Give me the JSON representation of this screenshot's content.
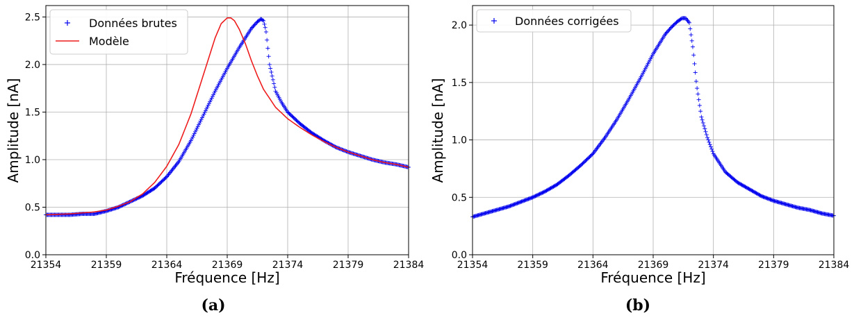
{
  "colors": {
    "raw": "#0000ee",
    "model": "#ee1c1c",
    "grid": "#b0b0b0"
  },
  "chart_data": [
    {
      "type": "scatter",
      "caption": "(a)",
      "xlabel": "Fréquence [Hz]",
      "ylabel": "Amplitude [nA]",
      "xlim": [
        21354,
        21384
      ],
      "ylim": [
        0.0,
        2.62
      ],
      "xticks": [
        "21354",
        "21359",
        "21364",
        "21369",
        "21374",
        "21379",
        "21384"
      ],
      "yticks": [
        "0.0",
        "0.5",
        "1.0",
        "1.5",
        "2.0",
        "2.5"
      ],
      "grid": true,
      "legend_position": "top-left",
      "series": [
        {
          "name": "Données brutes",
          "kind": "markers",
          "marker": "+",
          "color": "#0000ee",
          "x": [
            21354,
            21355,
            21356,
            21357,
            21358,
            21359,
            21360,
            21361,
            21362,
            21363,
            21364,
            21365,
            21366,
            21367,
            21368,
            21369,
            21370,
            21370.5,
            21371,
            21371.5,
            21371.8,
            21372,
            21372.2,
            21372.5,
            21373,
            21373.5,
            21374,
            21375,
            21376,
            21377,
            21378,
            21379,
            21380,
            21381,
            21382,
            21383,
            21384
          ],
          "y": [
            0.42,
            0.42,
            0.42,
            0.43,
            0.43,
            0.46,
            0.5,
            0.56,
            0.62,
            0.7,
            0.82,
            0.98,
            1.2,
            1.46,
            1.72,
            1.96,
            2.18,
            2.28,
            2.38,
            2.45,
            2.48,
            2.46,
            2.36,
            2.0,
            1.72,
            1.6,
            1.5,
            1.38,
            1.28,
            1.2,
            1.13,
            1.08,
            1.04,
            1.0,
            0.97,
            0.95,
            0.92
          ]
        },
        {
          "name": "Modèle",
          "kind": "line",
          "color": "#ee1c1c",
          "x": [
            21354,
            21356,
            21358,
            21359,
            21360,
            21361,
            21362,
            21363,
            21364,
            21365,
            21366,
            21367,
            21368,
            21368.5,
            21369,
            21369.3,
            21369.6,
            21370,
            21370.5,
            21371,
            21371.5,
            21372,
            21373,
            21374,
            21375,
            21376,
            21377,
            21378,
            21379,
            21380,
            21381,
            21382,
            21383,
            21384
          ],
          "y": [
            0.42,
            0.43,
            0.45,
            0.47,
            0.51,
            0.56,
            0.64,
            0.76,
            0.93,
            1.16,
            1.48,
            1.88,
            2.28,
            2.43,
            2.49,
            2.49,
            2.46,
            2.37,
            2.22,
            2.04,
            1.88,
            1.74,
            1.55,
            1.43,
            1.34,
            1.26,
            1.19,
            1.13,
            1.08,
            1.04,
            1.0,
            0.97,
            0.95,
            0.92
          ]
        }
      ]
    },
    {
      "type": "scatter",
      "caption": "(b)",
      "xlabel": "Fréquence [Hz]",
      "ylabel": "Amplitude [nA]",
      "xlim": [
        21354,
        21384
      ],
      "ylim": [
        0.0,
        2.17
      ],
      "xticks": [
        "21354",
        "21359",
        "21364",
        "21369",
        "21374",
        "21379",
        "21384"
      ],
      "yticks": [
        "0.0",
        "0.5",
        "1.0",
        "1.5",
        "2.0"
      ],
      "grid": true,
      "legend_position": "top-left",
      "series": [
        {
          "name": "Données corrigées",
          "kind": "markers",
          "marker": "+",
          "color": "#0000ee",
          "x": [
            21354,
            21355,
            21356,
            21357,
            21358,
            21359,
            21360,
            21361,
            21362,
            21363,
            21364,
            21365,
            21366,
            21367,
            21368,
            21369,
            21370,
            21370.5,
            21371,
            21371.4,
            21371.7,
            21372,
            21372.3,
            21372.6,
            21373,
            21373.5,
            21374,
            21375,
            21376,
            21377,
            21378,
            21379,
            21380,
            21381,
            21382,
            21383,
            21384
          ],
          "y": [
            0.33,
            0.36,
            0.39,
            0.42,
            0.46,
            0.5,
            0.55,
            0.61,
            0.69,
            0.78,
            0.88,
            1.02,
            1.18,
            1.36,
            1.55,
            1.75,
            1.92,
            1.98,
            2.03,
            2.06,
            2.06,
            2.02,
            1.8,
            1.48,
            1.2,
            1.02,
            0.88,
            0.72,
            0.63,
            0.57,
            0.51,
            0.47,
            0.44,
            0.41,
            0.39,
            0.36,
            0.34
          ]
        }
      ]
    }
  ]
}
